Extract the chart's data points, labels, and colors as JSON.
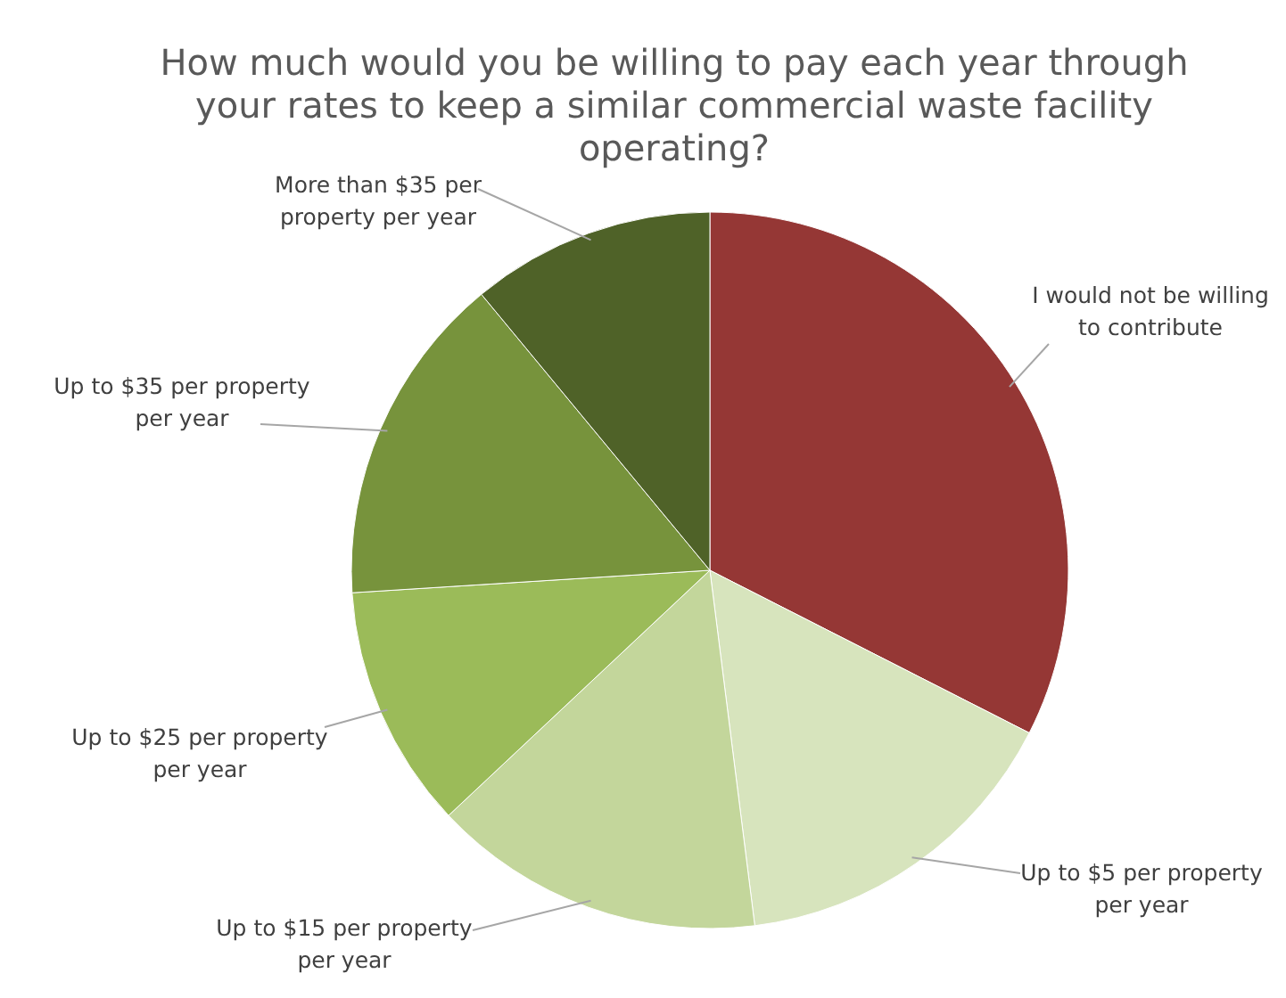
{
  "chart_data": {
    "type": "pie",
    "title": "How much would you be willing to pay each year through your rates to keep a similar commercial waste facility operating?",
    "categories": [
      "I would not be willing to contribute",
      "Up to $5 per property per year",
      "Up to $15 per property per year",
      "Up to $25 per property per year",
      "Up to $35 per property per year",
      "More than $35 per property per year"
    ],
    "values": [
      32.5,
      15.5,
      15,
      11,
      15,
      11
    ],
    "colors": [
      "#953735",
      "#d7e4bd",
      "#c3d69b",
      "#9bbb59",
      "#77933c",
      "#4f6228"
    ]
  }
}
